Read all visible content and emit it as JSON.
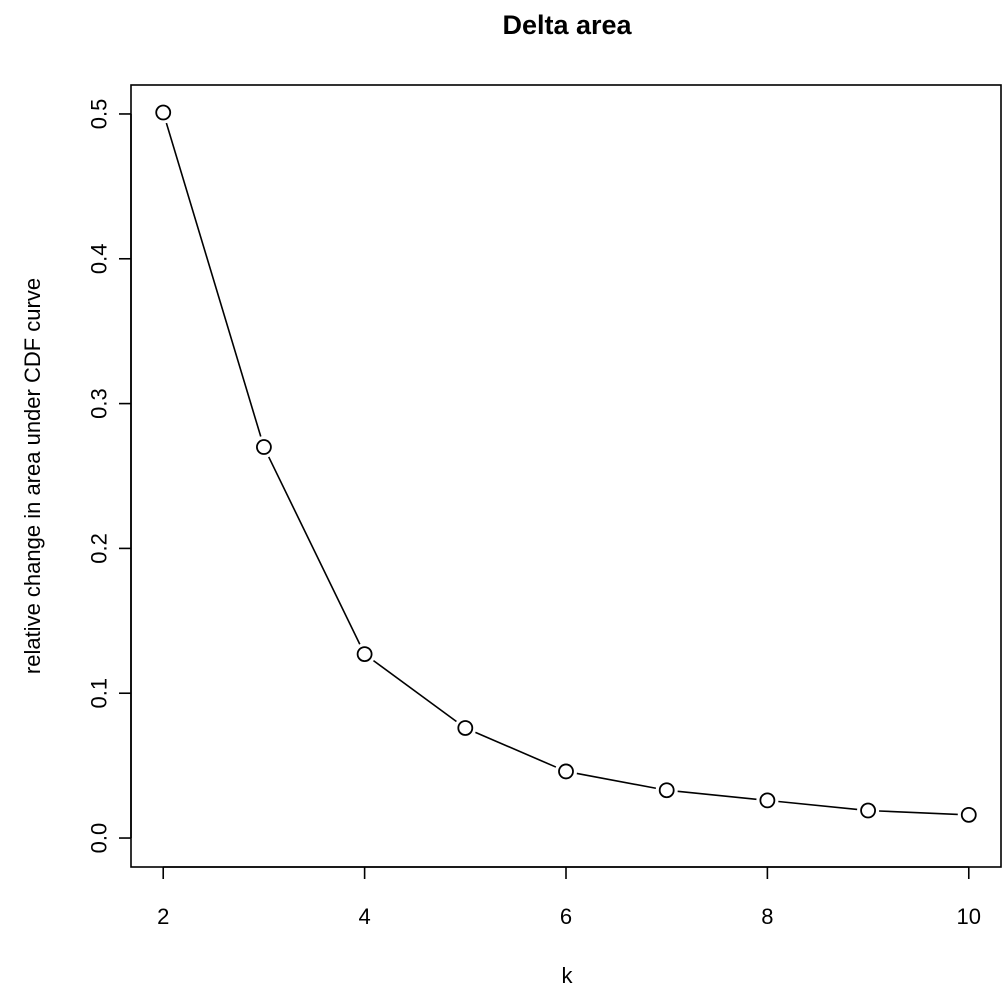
{
  "chart_data": {
    "type": "line",
    "title": "Delta area",
    "xlabel": "k",
    "ylabel": "relative change in area under CDF curve",
    "x": [
      2,
      3,
      4,
      5,
      6,
      7,
      8,
      9,
      10
    ],
    "series": [
      {
        "values": [
          0.501,
          0.27,
          0.127,
          0.076,
          0.046,
          0.033,
          0.026,
          0.019,
          0.016
        ]
      }
    ],
    "xlim": [
      1.68,
      10.32
    ],
    "ylim": [
      -0.02,
      0.52
    ],
    "xticks": [
      2,
      4,
      6,
      8,
      10
    ],
    "xtick_labels": [
      "2",
      "4",
      "6",
      "8",
      "10"
    ],
    "yticks": [
      0.0,
      0.1,
      0.2,
      0.3,
      0.4,
      0.5
    ],
    "ytick_labels": [
      "0.0",
      "0.1",
      "0.2",
      "0.3",
      "0.4",
      "0.5"
    ],
    "grid": false,
    "marker": "open-circle",
    "line_color": "#000000",
    "marker_fill": "#ffffff"
  }
}
